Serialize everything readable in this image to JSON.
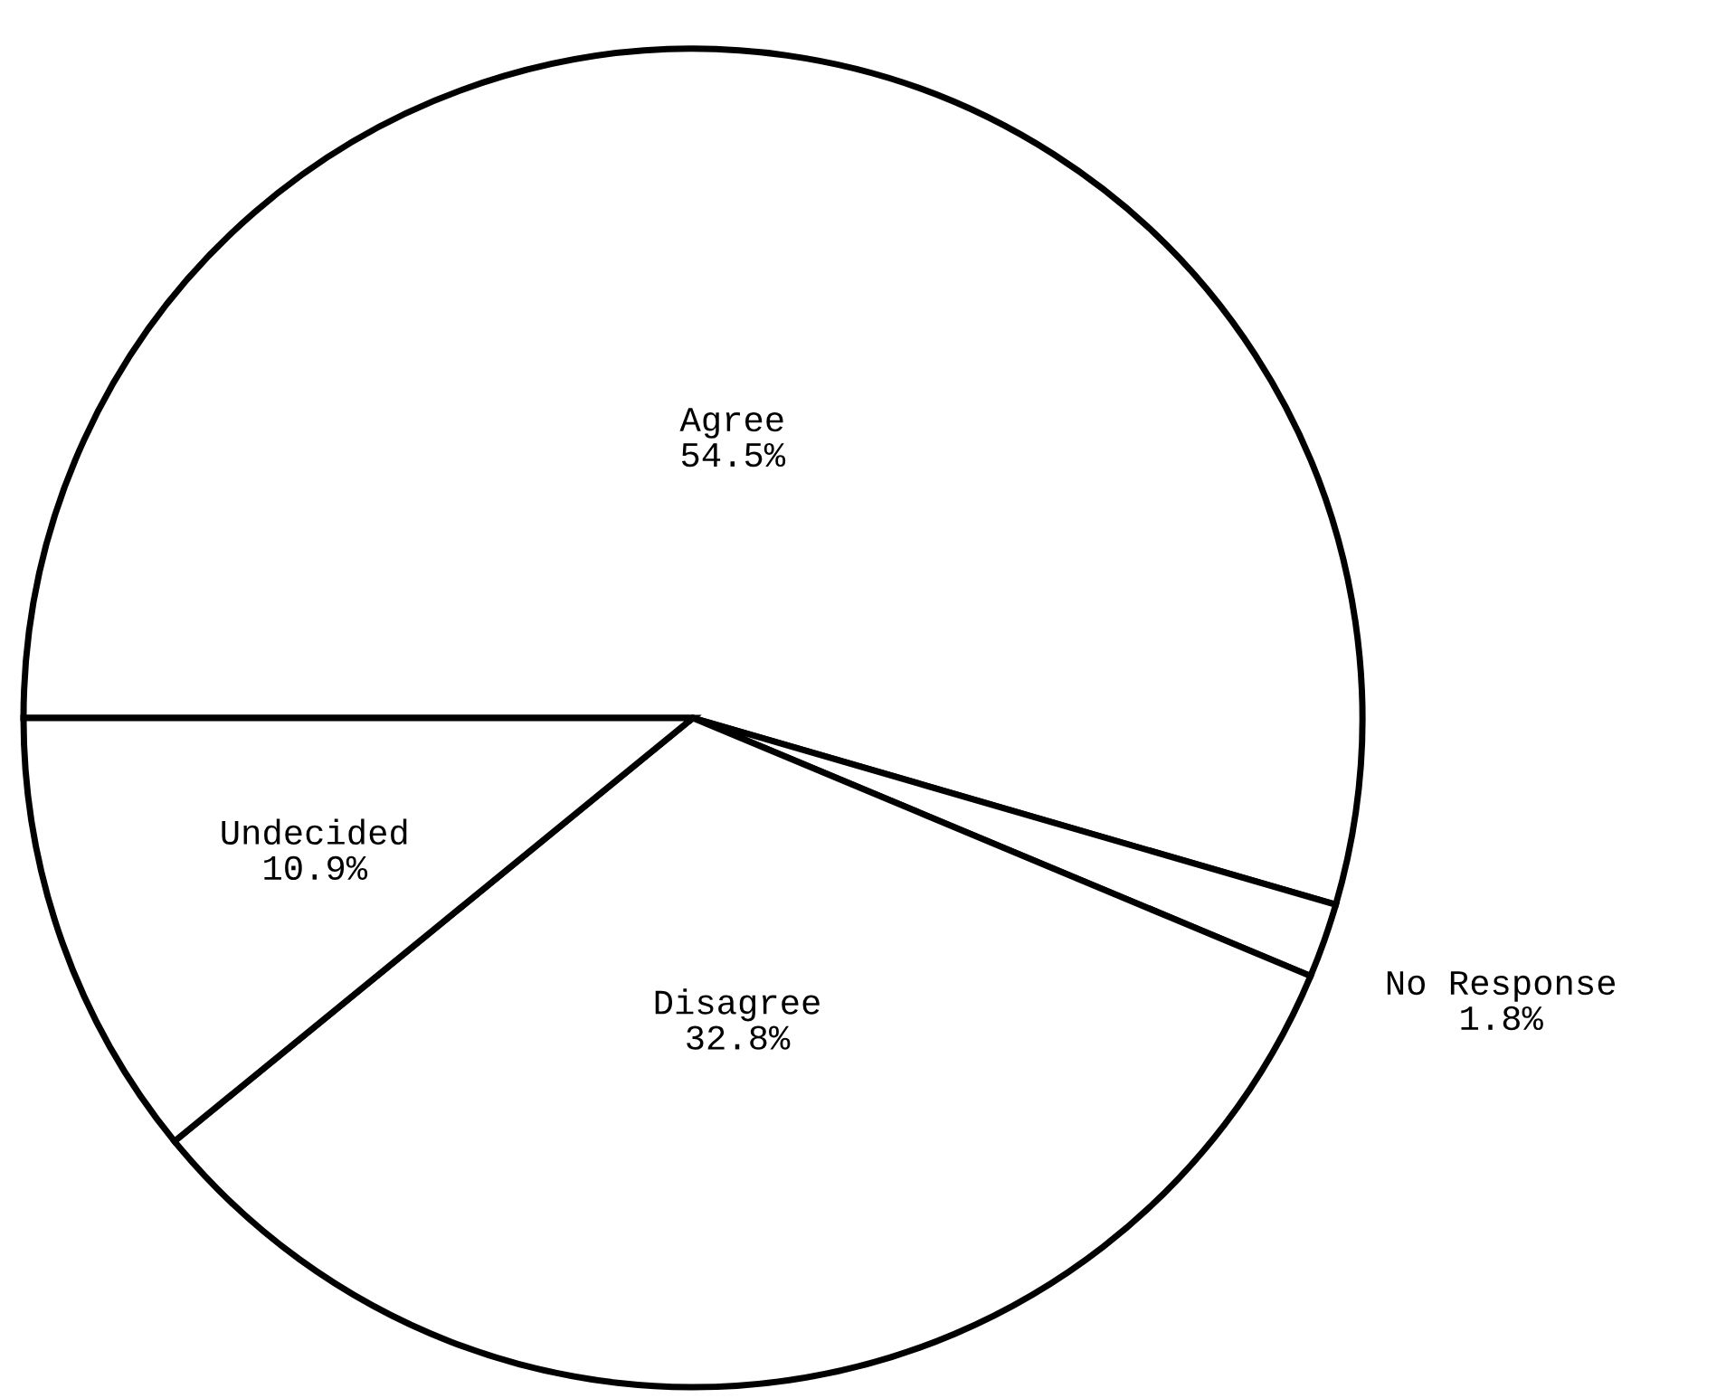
{
  "chart_data": {
    "type": "pie",
    "categories": [
      "Agree",
      "No Response",
      "Disagree",
      "Undecided"
    ],
    "values": [
      54.5,
      1.8,
      32.8,
      10.9
    ],
    "value_labels": [
      "54.5%",
      "1.8%",
      "32.8%",
      "10.9%"
    ],
    "colors": [
      "#ffffff",
      "#ffffff",
      "#ffffff",
      "#ffffff"
    ],
    "legend": false
  }
}
